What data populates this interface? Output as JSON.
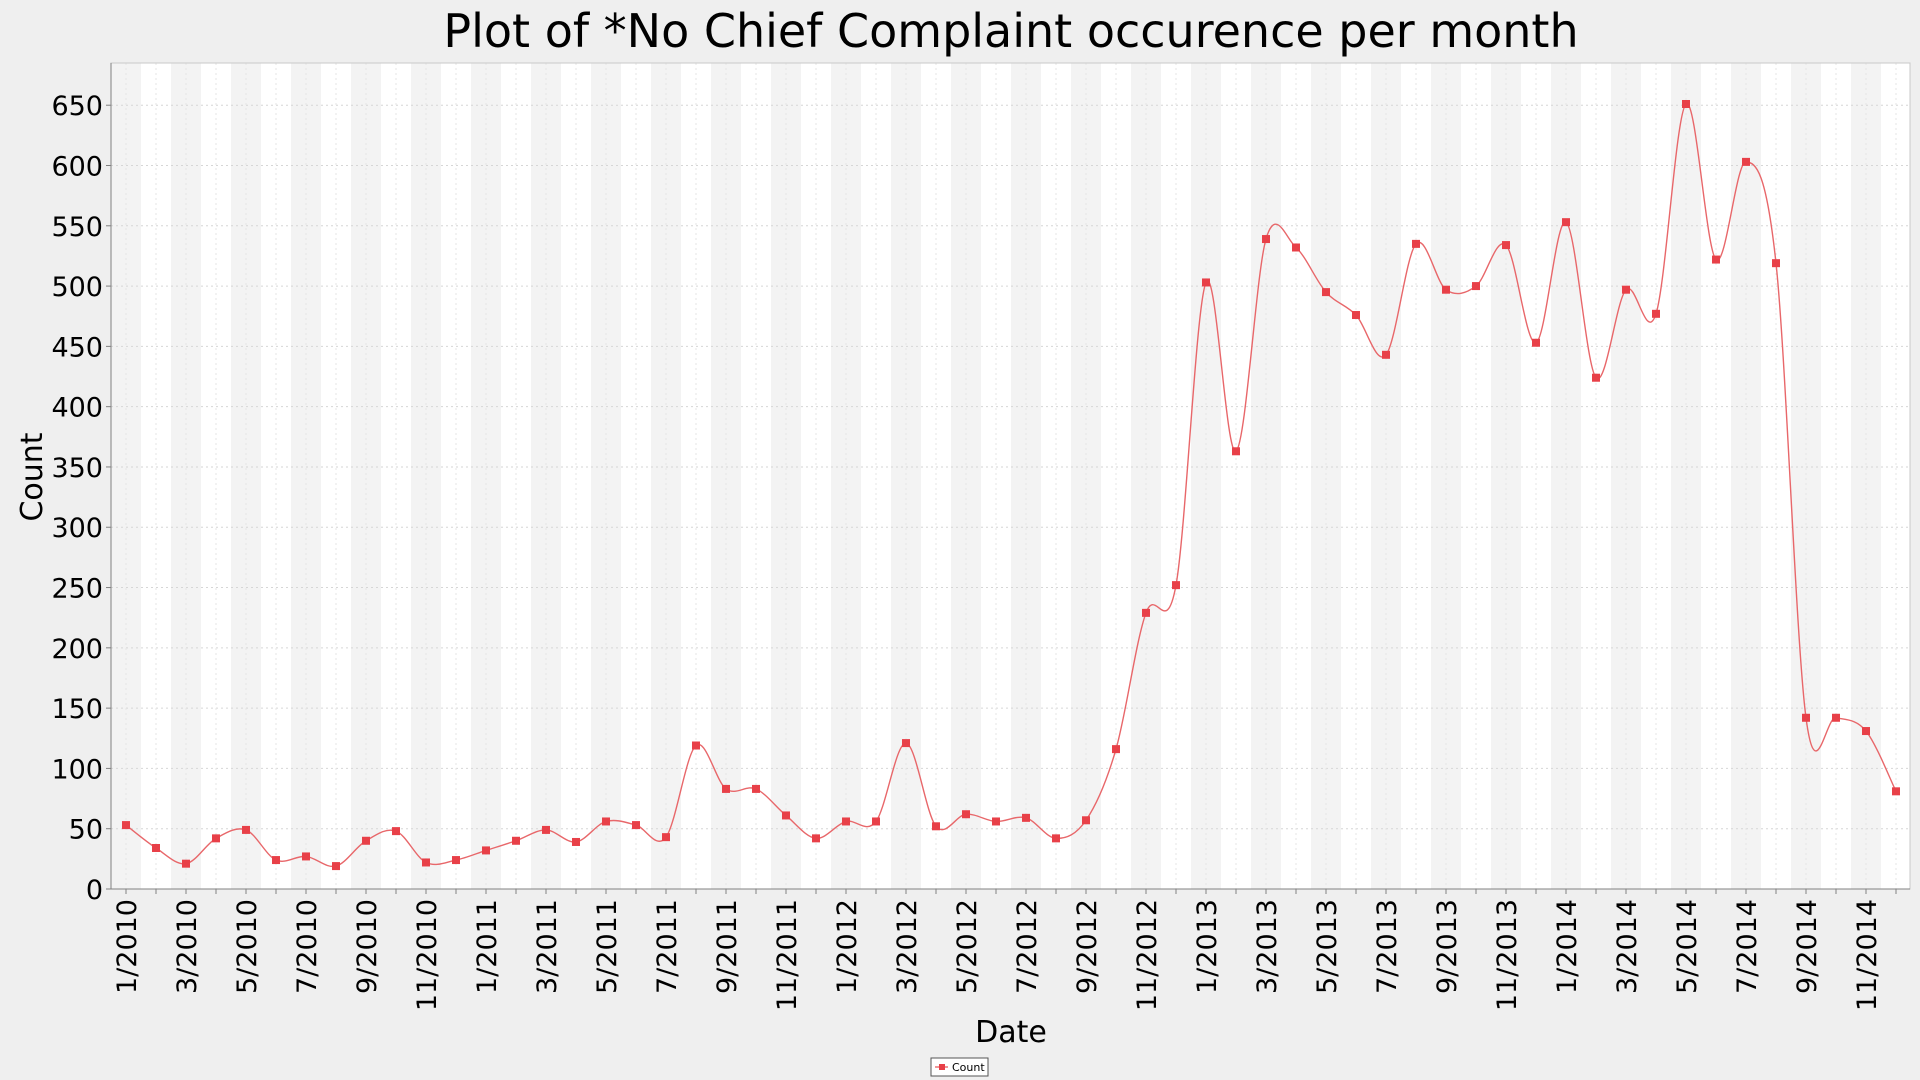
{
  "chart_data": {
    "type": "line",
    "title": "Plot of *No Chief Complaint occurence per month",
    "xlabel": "Date",
    "ylabel": "Count",
    "ylim": [
      0,
      685
    ],
    "yticks": [
      0,
      50,
      100,
      150,
      200,
      250,
      300,
      350,
      400,
      450,
      500,
      550,
      600,
      650
    ],
    "xtick_labels": [
      "1/2010",
      "3/2010",
      "5/2010",
      "7/2010",
      "9/2010",
      "11/2010",
      "1/2011",
      "3/2011",
      "5/2011",
      "7/2011",
      "9/2011",
      "11/2011",
      "1/2012",
      "3/2012",
      "5/2012",
      "7/2012",
      "9/2012",
      "11/2012",
      "1/2013",
      "3/2013",
      "5/2013",
      "7/2013",
      "9/2013",
      "11/2013",
      "1/2014",
      "3/2014",
      "5/2014",
      "7/2014",
      "9/2014",
      "11/2014"
    ],
    "grid": true,
    "legend_position": "bottom-center",
    "line_color": "#e8676a",
    "marker_color": "#e84048",
    "series": [
      {
        "name": "Count",
        "x": [
          "1/2010",
          "2/2010",
          "3/2010",
          "4/2010",
          "5/2010",
          "6/2010",
          "7/2010",
          "8/2010",
          "9/2010",
          "10/2010",
          "11/2010",
          "12/2010",
          "1/2011",
          "2/2011",
          "3/2011",
          "4/2011",
          "5/2011",
          "6/2011",
          "7/2011",
          "8/2011",
          "9/2011",
          "10/2011",
          "11/2011",
          "12/2011",
          "1/2012",
          "2/2012",
          "3/2012",
          "4/2012",
          "5/2012",
          "6/2012",
          "7/2012",
          "8/2012",
          "9/2012",
          "10/2012",
          "11/2012",
          "12/2012",
          "1/2013",
          "2/2013",
          "3/2013",
          "4/2013",
          "5/2013",
          "6/2013",
          "7/2013",
          "8/2013",
          "9/2013",
          "10/2013",
          "11/2013",
          "12/2013",
          "1/2014",
          "2/2014",
          "3/2014",
          "4/2014",
          "5/2014",
          "6/2014",
          "7/2014",
          "8/2014",
          "9/2014",
          "10/2014",
          "11/2014",
          "12/2014"
        ],
        "values": [
          53,
          34,
          21,
          42,
          49,
          24,
          27,
          19,
          40,
          48,
          22,
          24,
          32,
          40,
          49,
          39,
          56,
          53,
          43,
          119,
          83,
          83,
          61,
          42,
          56,
          56,
          121,
          52,
          62,
          56,
          59,
          42,
          57,
          116,
          229,
          252,
          503,
          363,
          539,
          532,
          495,
          476,
          443,
          535,
          497,
          500,
          534,
          453,
          553,
          424,
          497,
          477,
          651,
          522,
          603,
          519,
          142,
          142,
          131,
          81
        ]
      }
    ]
  }
}
